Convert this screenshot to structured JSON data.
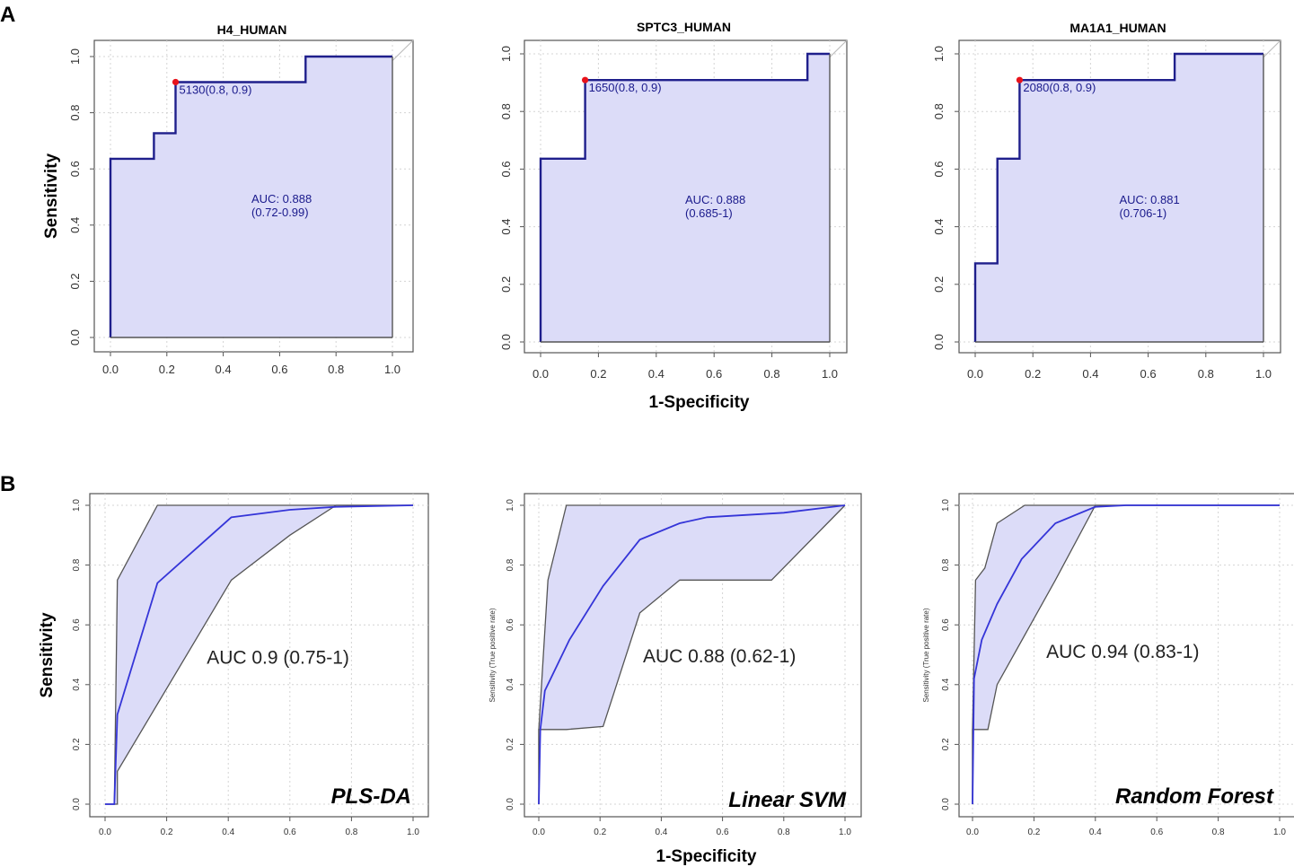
{
  "colors": {
    "fill": "#dcdcf8",
    "curveA": "#1f1f8c",
    "curveB": "#3535d8",
    "band": "#555555",
    "diag": "#bdbdbd",
    "grid": "#d4d4d4",
    "frame": "#555555",
    "point": "#e8131b"
  },
  "chart_data": [
    {
      "panel": "A",
      "type": "line",
      "title": "H4_HUMAN",
      "xlabel": "",
      "ylabel": "Sensitivity",
      "xlim": [
        0,
        1
      ],
      "ylim": [
        0,
        1
      ],
      "x_ticks": [
        "0.0",
        "0.2",
        "0.4",
        "0.6",
        "0.8",
        "1.0"
      ],
      "y_ticks": [
        "0.0",
        "0.2",
        "0.4",
        "0.6",
        "0.8",
        "1.0"
      ],
      "roc": [
        [
          0,
          0
        ],
        [
          0,
          0.636
        ],
        [
          0.154,
          0.636
        ],
        [
          0.154,
          0.727
        ],
        [
          0.231,
          0.727
        ],
        [
          0.231,
          0.909
        ],
        [
          0.692,
          0.909
        ],
        [
          0.692,
          1
        ],
        [
          1,
          1
        ]
      ],
      "threshold_point": [
        0.231,
        0.909
      ],
      "threshold_label": "5130(0.8, 0.9)",
      "auc_label": "AUC: 0.888",
      "ci_label": "(0.72-0.99)",
      "auc_pos": [
        0.5,
        0.48
      ]
    },
    {
      "panel": "A",
      "type": "line",
      "title": "SPTC3_HUMAN",
      "xlabel": "1-Specificity",
      "ylabel": "",
      "xlim": [
        0,
        1
      ],
      "ylim": [
        0,
        1
      ],
      "x_ticks": [
        "0.0",
        "0.2",
        "0.4",
        "0.6",
        "0.8",
        "1.0"
      ],
      "y_ticks": [
        "0.0",
        "0.2",
        "0.4",
        "0.6",
        "0.8",
        "1.0"
      ],
      "roc": [
        [
          0,
          0
        ],
        [
          0,
          0.636
        ],
        [
          0.154,
          0.636
        ],
        [
          0.154,
          0.909
        ],
        [
          0.923,
          0.909
        ],
        [
          0.923,
          1
        ],
        [
          1,
          1
        ]
      ],
      "threshold_point": [
        0.154,
        0.909
      ],
      "threshold_label": "1650(0.8, 0.9)",
      "auc_label": "AUC: 0.888",
      "ci_label": "(0.685-1)",
      "auc_pos": [
        0.5,
        0.48
      ]
    },
    {
      "panel": "A",
      "type": "line",
      "title": "MA1A1_HUMAN",
      "xlabel": "",
      "ylabel": "",
      "xlim": [
        0,
        1
      ],
      "ylim": [
        0,
        1
      ],
      "x_ticks": [
        "0.0",
        "0.2",
        "0.4",
        "0.6",
        "0.8",
        "1.0"
      ],
      "y_ticks": [
        "0.0",
        "0.2",
        "0.4",
        "0.6",
        "0.8",
        "1.0"
      ],
      "roc": [
        [
          0,
          0
        ],
        [
          0,
          0.273
        ],
        [
          0.077,
          0.273
        ],
        [
          0.077,
          0.636
        ],
        [
          0.154,
          0.636
        ],
        [
          0.154,
          0.909
        ],
        [
          0.692,
          0.909
        ],
        [
          0.692,
          1
        ],
        [
          1,
          1
        ]
      ],
      "threshold_point": [
        0.154,
        0.909
      ],
      "threshold_label": "2080(0.8, 0.9)",
      "auc_label": "AUC: 0.881",
      "ci_label": "(0.706-1)",
      "auc_pos": [
        0.5,
        0.48
      ]
    },
    {
      "panel": "B",
      "type": "area",
      "title": "",
      "method": "PLS-DA",
      "xlabel": "",
      "ylabel": "Sensitivity",
      "xlim": [
        0,
        1
      ],
      "ylim": [
        0,
        1
      ],
      "x_ticks": [
        "0.0",
        "0.2",
        "0.4",
        "0.6",
        "0.8",
        "1.0"
      ],
      "y_ticks": [
        "0.0",
        "0.2",
        "0.4",
        "0.6",
        "0.8",
        "1.0"
      ],
      "curve": [
        [
          0,
          0
        ],
        [
          0.03,
          0
        ],
        [
          0.04,
          0.3
        ],
        [
          0.17,
          0.74
        ],
        [
          0.41,
          0.96
        ],
        [
          0.6,
          0.985
        ],
        [
          0.75,
          0.995
        ],
        [
          1,
          1
        ]
      ],
      "upper": [
        [
          0,
          0
        ],
        [
          0.03,
          0
        ],
        [
          0.04,
          0.75
        ],
        [
          0.17,
          1
        ],
        [
          1,
          1
        ]
      ],
      "lower": [
        [
          0,
          0
        ],
        [
          0.04,
          0
        ],
        [
          0.04,
          0.11
        ],
        [
          0.41,
          0.75
        ],
        [
          0.6,
          0.9
        ],
        [
          0.75,
          1
        ],
        [
          1,
          1
        ]
      ],
      "auc_label": "AUC 0.9 (0.75-1)",
      "auc_pos": [
        0.33,
        0.47
      ]
    },
    {
      "panel": "B",
      "type": "area",
      "title": "",
      "method": "Linear SVM",
      "xlabel": "1-Specificity",
      "ylabel": "Sensitivity (True positive rate)",
      "xlim": [
        0,
        1
      ],
      "ylim": [
        0,
        1
      ],
      "x_ticks": [
        "0.0",
        "0.2",
        "0.4",
        "0.6",
        "0.8",
        "1.0"
      ],
      "y_ticks": [
        "0.0",
        "0.2",
        "0.4",
        "0.6",
        "0.8",
        "1.0"
      ],
      "curve": [
        [
          0,
          0
        ],
        [
          0.005,
          0.25
        ],
        [
          0.02,
          0.38
        ],
        [
          0.1,
          0.55
        ],
        [
          0.21,
          0.73
        ],
        [
          0.33,
          0.885
        ],
        [
          0.46,
          0.94
        ],
        [
          0.55,
          0.96
        ],
        [
          0.8,
          0.975
        ],
        [
          1,
          1
        ]
      ],
      "upper": [
        [
          0,
          0
        ],
        [
          0,
          0.25
        ],
        [
          0.03,
          0.75
        ],
        [
          0.09,
          1
        ],
        [
          1,
          1
        ]
      ],
      "lower": [
        [
          0,
          0
        ],
        [
          0,
          0.25
        ],
        [
          0.09,
          0.25
        ],
        [
          0.21,
          0.26
        ],
        [
          0.33,
          0.64
        ],
        [
          0.46,
          0.75
        ],
        [
          0.76,
          0.75
        ],
        [
          1,
          1
        ]
      ],
      "auc_label": "AUC 0.88 (0.62-1)",
      "auc_pos": [
        0.34,
        0.475
      ]
    },
    {
      "panel": "B",
      "type": "area",
      "title": "",
      "method": "Random Forest",
      "xlabel": "",
      "ylabel": "Sensitivity (True positive rate)",
      "xlim": [
        0,
        1
      ],
      "ylim": [
        0,
        1
      ],
      "x_ticks": [
        "0.0",
        "0.2",
        "0.4",
        "0.6",
        "0.8",
        "1.0"
      ],
      "y_ticks": [
        "0.0",
        "0.2",
        "0.4",
        "0.6",
        "0.8",
        "1.0"
      ],
      "curve": [
        [
          0,
          0
        ],
        [
          0.005,
          0.42
        ],
        [
          0.03,
          0.55
        ],
        [
          0.08,
          0.67
        ],
        [
          0.16,
          0.82
        ],
        [
          0.27,
          0.94
        ],
        [
          0.4,
          0.995
        ],
        [
          0.5,
          1
        ],
        [
          1,
          1
        ]
      ],
      "upper": [
        [
          0,
          0
        ],
        [
          0,
          0.25
        ],
        [
          0.01,
          0.75
        ],
        [
          0.04,
          0.79
        ],
        [
          0.08,
          0.94
        ],
        [
          0.17,
          1
        ],
        [
          1,
          1
        ]
      ],
      "lower": [
        [
          0,
          0
        ],
        [
          0,
          0.25
        ],
        [
          0.05,
          0.25
        ],
        [
          0.08,
          0.4
        ],
        [
          0.27,
          0.75
        ],
        [
          0.4,
          1
        ],
        [
          1,
          1
        ]
      ],
      "auc_label": "AUC 0.94 (0.83-1)",
      "auc_pos": [
        0.24,
        0.49
      ]
    }
  ],
  "panel_labels": [
    "A",
    "B"
  ]
}
